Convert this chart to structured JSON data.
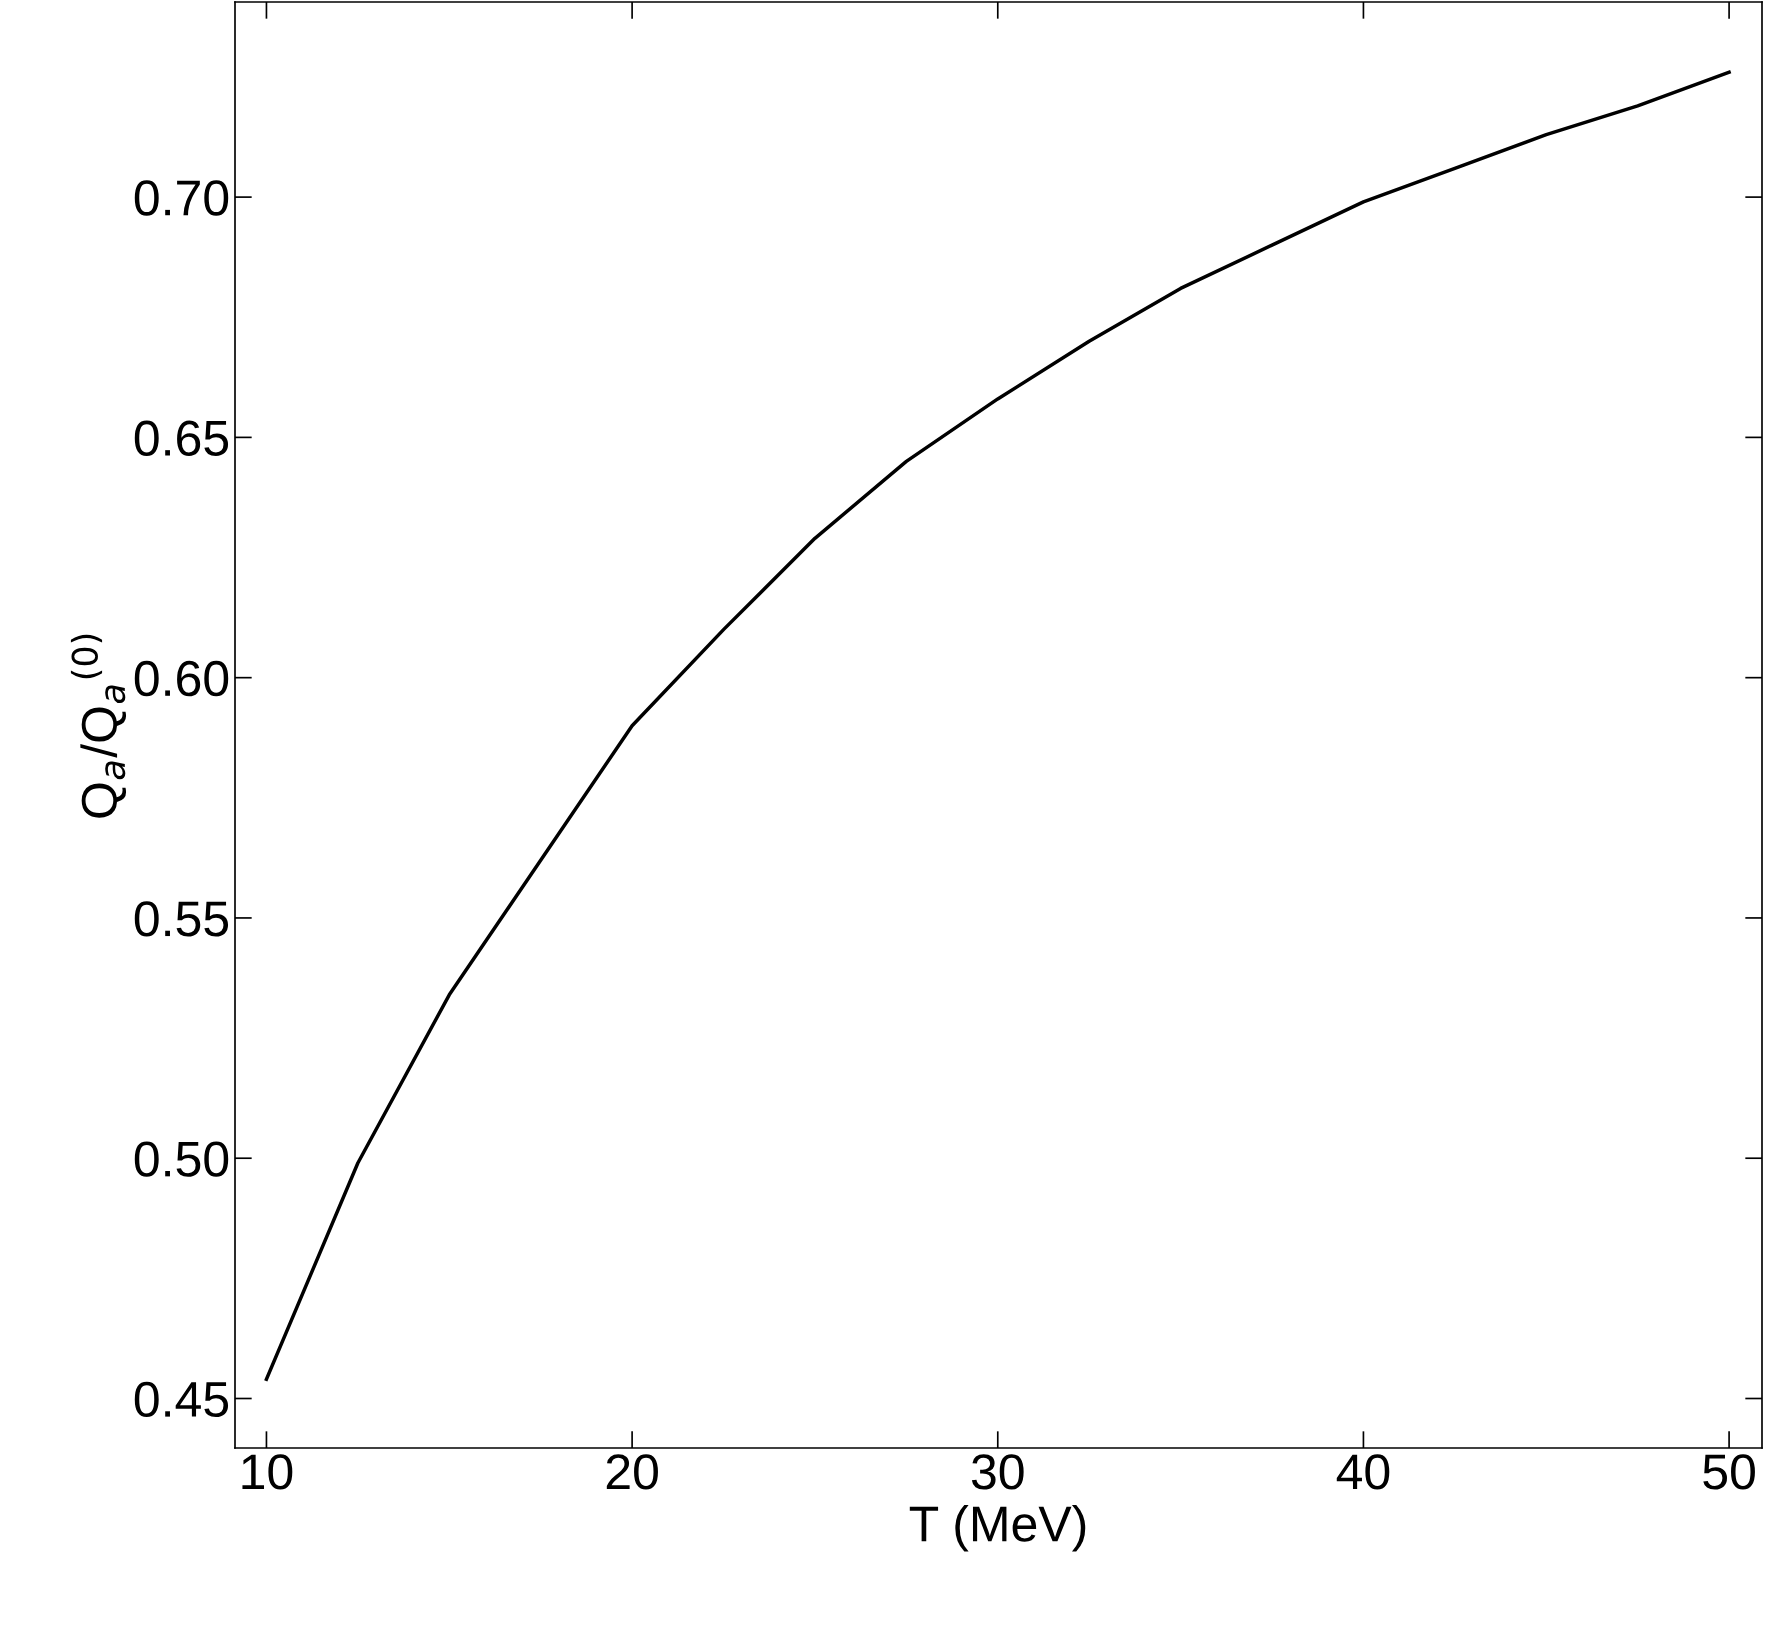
{
  "chart_data": {
    "type": "line",
    "xlabel": "T (MeV)",
    "ylabel": "Q$_{a}$/Q$_{a}$$^{(0)}$",
    "x": [
      10,
      12.5,
      15,
      17.5,
      20,
      22.5,
      25,
      27.5,
      30,
      32.5,
      35,
      37.5,
      40,
      42.5,
      45,
      47.5,
      50
    ],
    "series": [
      {
        "color": "#000000",
        "values": [
          0.454,
          0.499,
          0.534,
          0.562,
          0.59,
          0.61,
          0.629,
          0.645,
          0.658,
          0.67,
          0.681,
          0.69,
          0.699,
          0.706,
          0.713,
          0.719,
          0.726
        ]
      }
    ],
    "xlim": [
      9.14,
      50.9
    ],
    "ylim": [
      0.4397,
      0.7406
    ],
    "xticks": [
      10,
      20,
      30,
      40,
      50
    ],
    "yticks": [
      {
        "value": 0.45,
        "label": "0.45"
      },
      {
        "value": 0.5,
        "label": "0.50"
      },
      {
        "value": 0.55,
        "label": "0.55"
      },
      {
        "value": 0.6,
        "label": "0.60"
      },
      {
        "value": 0.65,
        "label": "0.65"
      },
      {
        "value": 0.7,
        "label": "0.70"
      }
    ],
    "grid": false,
    "legend": false,
    "marker": "none",
    "line_style": "solid"
  }
}
